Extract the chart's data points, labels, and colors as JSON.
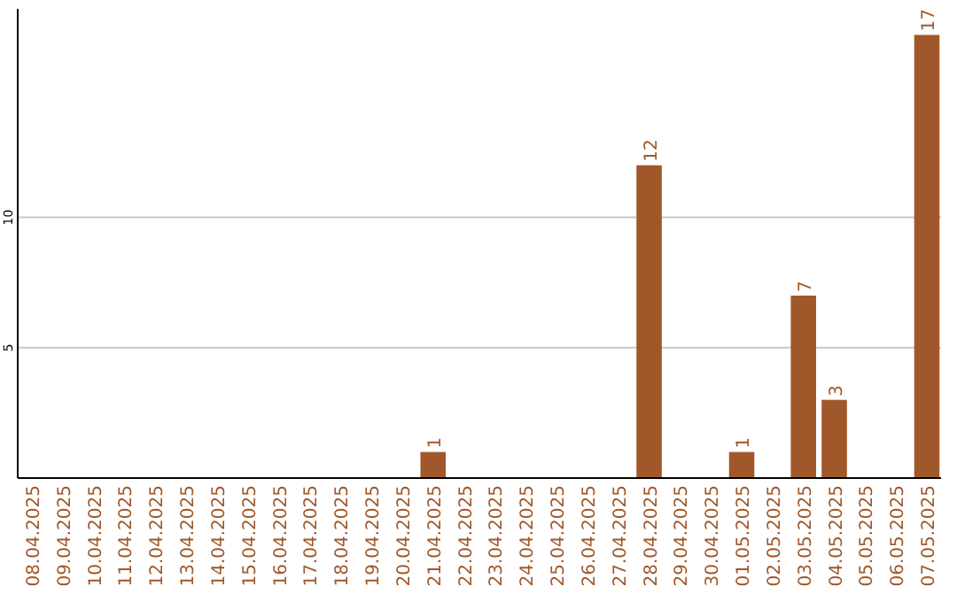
{
  "chart_data": {
    "type": "bar",
    "categories": [
      "08.04.2025",
      "09.04.2025",
      "10.04.2025",
      "11.04.2025",
      "12.04.2025",
      "13.04.2025",
      "14.04.2025",
      "15.04.2025",
      "16.04.2025",
      "17.04.2025",
      "18.04.2025",
      "19.04.2025",
      "20.04.2025",
      "21.04.2025",
      "22.04.2025",
      "23.04.2025",
      "24.04.2025",
      "25.04.2025",
      "26.04.2025",
      "27.04.2025",
      "28.04.2025",
      "29.04.2025",
      "30.04.2025",
      "01.05.2025",
      "02.05.2025",
      "03.05.2025",
      "04.05.2025",
      "05.05.2025",
      "06.05.2025",
      "07.05.2025"
    ],
    "values": [
      0,
      0,
      0,
      0,
      0,
      0,
      0,
      0,
      0,
      0,
      0,
      0,
      0,
      1,
      0,
      0,
      0,
      0,
      0,
      0,
      12,
      0,
      0,
      1,
      0,
      7,
      3,
      0,
      0,
      17
    ],
    "value_labels": [
      null,
      null,
      null,
      null,
      null,
      null,
      null,
      null,
      null,
      null,
      null,
      null,
      null,
      "1",
      null,
      null,
      null,
      null,
      null,
      null,
      "12",
      null,
      null,
      "1",
      null,
      "7",
      "3",
      null,
      null,
      "17"
    ],
    "color": "#a0582a",
    "ylim": [
      0,
      18
    ],
    "yticks": [
      5,
      10
    ],
    "grid": "y"
  }
}
